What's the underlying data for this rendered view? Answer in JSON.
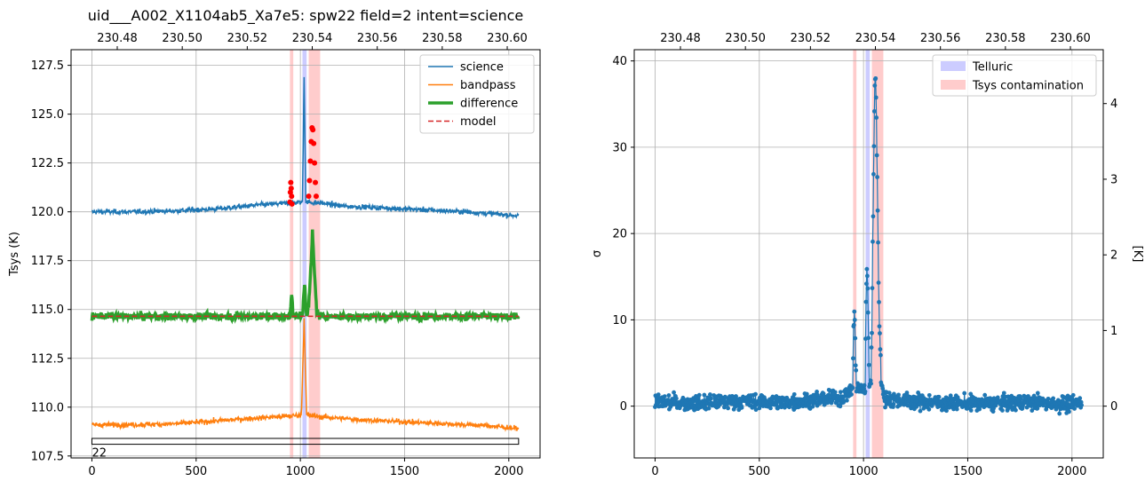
{
  "chart_data": [
    {
      "type": "line",
      "title": "uid___A002_X1104ab5_Xa7e5: spw22 field=2 intent=science",
      "xlabel": "",
      "ylabel": "Tsys (K)",
      "xlim": [
        -100,
        2150
      ],
      "ylim": [
        107.4,
        128.3
      ],
      "xticks": [
        0,
        500,
        1000,
        1500,
        2000
      ],
      "yticks": [
        107.5,
        110.0,
        112.5,
        115.0,
        117.5,
        120.0,
        122.5,
        125.0,
        127.5
      ],
      "ytick_labels": [
        "107.5",
        "110.0",
        "112.5",
        "115.0",
        "117.5",
        "120.0",
        "122.5",
        "125.0",
        "127.5"
      ],
      "top_axis_label": "",
      "top_xticks": [
        230.48,
        230.5,
        230.52,
        230.54,
        230.56,
        230.58,
        230.6
      ],
      "top_xtick_labels": [
        "230.48",
        "230.50",
        "230.52",
        "230.54",
        "230.56",
        "230.58",
        "230.60"
      ],
      "top_axis_channel_map": {
        "channel": [
          0,
          2047
        ],
        "frequency": [
          230.4722,
          230.6035
        ]
      },
      "grid": true,
      "legend_position": "top-right",
      "series": [
        {
          "name": "science",
          "color": "#1f77b4",
          "linewidth": 1.5,
          "points": [
            [
              0,
              120.0
            ],
            [
              200,
              120.0
            ],
            [
              400,
              120.05
            ],
            [
              600,
              120.15
            ],
            [
              800,
              120.35
            ],
            [
              950,
              120.45
            ],
            [
              1000,
              120.5
            ],
            [
              1010,
              120.5
            ],
            [
              1018,
              127.0
            ],
            [
              1026,
              120.5
            ],
            [
              1100,
              120.45
            ],
            [
              1200,
              120.3
            ],
            [
              1400,
              120.2
            ],
            [
              1600,
              120.1
            ],
            [
              1800,
              120.0
            ],
            [
              2047,
              119.8
            ]
          ]
        },
        {
          "name": "bandpass",
          "color": "#ff7f0e",
          "linewidth": 1.5,
          "points": [
            [
              0,
              109.1
            ],
            [
              200,
              109.1
            ],
            [
              400,
              109.15
            ],
            [
              600,
              109.3
            ],
            [
              800,
              109.45
            ],
            [
              950,
              109.55
            ],
            [
              1005,
              109.6
            ],
            [
              1018,
              114.5
            ],
            [
              1030,
              109.6
            ],
            [
              1100,
              109.5
            ],
            [
              1300,
              109.35
            ],
            [
              1500,
              109.25
            ],
            [
              1700,
              109.15
            ],
            [
              1900,
              109.05
            ],
            [
              2047,
              108.9
            ]
          ]
        },
        {
          "name": "difference",
          "color": "#2ca02c",
          "linewidth": 3.5,
          "points": [
            [
              0,
              114.65
            ],
            [
              500,
              114.65
            ],
            [
              950,
              114.65
            ],
            [
              958,
              115.8
            ],
            [
              966,
              114.65
            ],
            [
              1010,
              114.65
            ],
            [
              1020,
              116.4
            ],
            [
              1030,
              114.7
            ],
            [
              1040,
              115.2
            ],
            [
              1050,
              117.0
            ],
            [
              1058,
              118.95
            ],
            [
              1068,
              116.8
            ],
            [
              1078,
              115.0
            ],
            [
              1092,
              114.65
            ],
            [
              1500,
              114.65
            ],
            [
              2047,
              114.65
            ]
          ]
        },
        {
          "name": "model",
          "color": "#d62728",
          "linewidth": 1.5,
          "dashed": true,
          "points": [
            [
              0,
              114.65
            ],
            [
              2047,
              114.65
            ]
          ]
        }
      ],
      "flagged_points": {
        "color": "#ff0000",
        "points": [
          [
            950,
            120.5
          ],
          [
            952,
            121.0
          ],
          [
            954,
            121.5
          ],
          [
            956,
            121.2
          ],
          [
            958,
            120.8
          ],
          [
            960,
            120.4
          ],
          [
            1040,
            120.8
          ],
          [
            1044,
            121.6
          ],
          [
            1048,
            122.6
          ],
          [
            1052,
            123.6
          ],
          [
            1056,
            124.3
          ],
          [
            1060,
            124.2
          ],
          [
            1064,
            123.5
          ],
          [
            1068,
            122.5
          ],
          [
            1072,
            121.5
          ],
          [
            1076,
            120.8
          ]
        ]
      },
      "spans": [
        {
          "x0": 950,
          "x1": 966,
          "color": "#ffcccc",
          "kind": "Tsys contamination"
        },
        {
          "x0": 1010,
          "x1": 1030,
          "color": "#ccccff",
          "kind": "Telluric"
        },
        {
          "x0": 1040,
          "x1": 1095,
          "color": "#ffcccc",
          "kind": "Tsys contamination"
        }
      ],
      "range_box": {
        "x0": 0,
        "x1": 2047,
        "y_top": 108.4,
        "y_bottom": 108.1,
        "label": "22"
      }
    },
    {
      "type": "scatter",
      "title": "",
      "xlabel": "",
      "ylabel": "σ",
      "right_ylabel": "[K]",
      "xlim": [
        -100,
        2150
      ],
      "ylim": [
        -6,
        41.3
      ],
      "xticks": [
        0,
        500,
        1000,
        1500,
        2000
      ],
      "yticks": [
        0,
        10,
        20,
        30,
        40
      ],
      "ytick_labels": [
        "0",
        "10",
        "20",
        "30",
        "40"
      ],
      "right_yticks": [
        0,
        1,
        2,
        3,
        4
      ],
      "right_ytick_labels": [
        "0",
        "1",
        "2",
        "3",
        "4"
      ],
      "right_scale": 0.1141,
      "top_axis_label": "",
      "top_xticks": [
        230.48,
        230.5,
        230.52,
        230.54,
        230.56,
        230.58,
        230.6
      ],
      "top_xtick_labels": [
        "230.48",
        "230.50",
        "230.52",
        "230.54",
        "230.56",
        "230.58",
        "230.60"
      ],
      "top_axis_channel_map": {
        "channel": [
          0,
          2047
        ],
        "frequency": [
          230.4722,
          230.6035
        ]
      },
      "grid": true,
      "legend_position": "top-right",
      "legend": [
        {
          "name": "Telluric",
          "color": "#ccccff"
        },
        {
          "name": "Tsys contamination",
          "color": "#ffcccc"
        }
      ],
      "spans": [
        {
          "x0": 950,
          "x1": 966,
          "color": "#ffcccc",
          "kind": "Tsys contamination"
        },
        {
          "x0": 1010,
          "x1": 1030,
          "color": "#ccccff",
          "kind": "Telluric"
        },
        {
          "x0": 1040,
          "x1": 1095,
          "color": "#ffcccc",
          "kind": "Tsys contamination"
        }
      ],
      "series": [
        {
          "name": "",
          "color": "#1f77b4",
          "noise_sigma": 1.1,
          "noise_range": [
            -3.0,
            3.5
          ],
          "points": [
            [
              0,
              0.5
            ],
            [
              200,
              0.3
            ],
            [
              400,
              0.6
            ],
            [
              600,
              0.4
            ],
            [
              800,
              0.8
            ],
            [
              900,
              1.0
            ],
            [
              948,
              2.0
            ],
            [
              952,
              9.0
            ],
            [
              956,
              10.5
            ],
            [
              960,
              8.0
            ],
            [
              966,
              2.0
            ],
            [
              1008,
              2.0
            ],
            [
              1012,
              12.0
            ],
            [
              1016,
              15.8
            ],
            [
              1020,
              13.5
            ],
            [
              1028,
              2.5
            ],
            [
              1036,
              3.0
            ],
            [
              1040,
              9.0
            ],
            [
              1044,
              18.0
            ],
            [
              1048,
              27.0
            ],
            [
              1052,
              35.0
            ],
            [
              1056,
              38.3
            ],
            [
              1060,
              36.0
            ],
            [
              1064,
              30.0
            ],
            [
              1068,
              23.0
            ],
            [
              1072,
              15.0
            ],
            [
              1078,
              8.0
            ],
            [
              1085,
              3.0
            ],
            [
              1095,
              1.0
            ],
            [
              1200,
              0.6
            ],
            [
              1400,
              0.4
            ],
            [
              1600,
              0.3
            ],
            [
              1800,
              0.5
            ],
            [
              2000,
              0.2
            ],
            [
              2047,
              0.5
            ]
          ]
        }
      ]
    }
  ]
}
